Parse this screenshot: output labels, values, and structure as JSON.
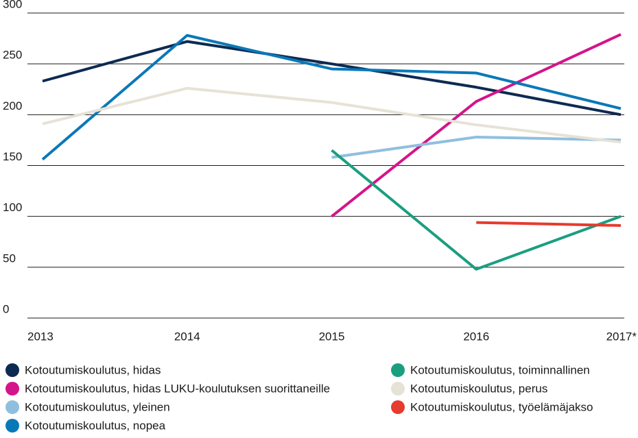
{
  "chart_data": {
    "type": "line",
    "categories": [
      "2013",
      "2014",
      "2015",
      "2016",
      "2017*"
    ],
    "series": [
      {
        "name": "Kotoutumiskoulutus, hidas",
        "color": "#0d2b52",
        "values": [
          233,
          272,
          250,
          227,
          200
        ]
      },
      {
        "name": "Kotoutumiskoulutus, hidas LUKU-koulutuksen suorittaneille",
        "color": "#d4148a",
        "values": [
          null,
          null,
          100,
          213,
          279
        ]
      },
      {
        "name": "Kotoutumiskoulutus, yleinen",
        "color": "#8fbfdf",
        "values": [
          null,
          null,
          158,
          178,
          175
        ]
      },
      {
        "name": "Kotoutumiskoulutus, nopea",
        "color": "#0a78b8",
        "values": [
          156,
          278,
          245,
          241,
          206
        ]
      },
      {
        "name": "Kotoutumiskoulutus, toiminnallinen",
        "color": "#1a9e80",
        "values": [
          null,
          null,
          165,
          48,
          100
        ]
      },
      {
        "name": "Kotoutumiskoulutus, perus",
        "color": "#e6e2d6",
        "values": [
          191,
          226,
          212,
          190,
          173
        ]
      },
      {
        "name": "Kotoutumiskoulutus, työelämäjakso",
        "color": "#e63b2e",
        "values": [
          null,
          null,
          null,
          94,
          91
        ]
      }
    ],
    "ylim": [
      0,
      300
    ],
    "yticks": [
      0,
      50,
      100,
      150,
      200,
      250,
      300
    ],
    "grid": true
  }
}
